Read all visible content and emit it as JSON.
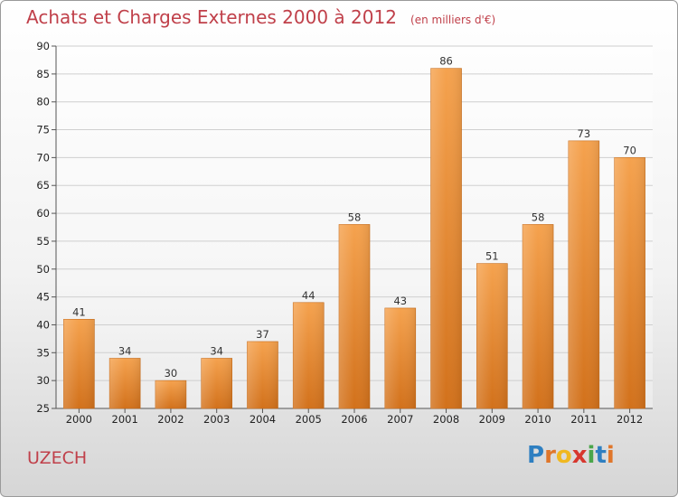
{
  "chart_data": {
    "type": "bar",
    "title": "Achats et Charges Externes 2000 à 2012",
    "unit": "(en milliers d'€)",
    "categories": [
      "2000",
      "2001",
      "2002",
      "2003",
      "2004",
      "2005",
      "2006",
      "2007",
      "2008",
      "2009",
      "2010",
      "2011",
      "2012"
    ],
    "values": [
      41,
      34,
      30,
      34,
      37,
      44,
      58,
      43,
      86,
      51,
      58,
      73,
      70
    ],
    "ylim": [
      25,
      90
    ],
    "yticks": [
      25,
      30,
      35,
      40,
      45,
      50,
      55,
      60,
      65,
      70,
      75,
      80,
      85,
      90
    ],
    "grid": true,
    "bar_color_top": "#f5a24e",
    "bar_color_bottom": "#d2711b"
  },
  "footer": {
    "town": "UZECH",
    "logo_letters": [
      {
        "ch": "P",
        "color": "#2e7fc1"
      },
      {
        "ch": "r",
        "color": "#e0762a"
      },
      {
        "ch": "o",
        "color": "#f0b820"
      },
      {
        "ch": "x",
        "color": "#d7372e"
      },
      {
        "ch": "i",
        "color": "#4aa64a"
      },
      {
        "ch": "t",
        "color": "#2e7fc1"
      },
      {
        "ch": "i",
        "color": "#e0762a"
      }
    ]
  }
}
